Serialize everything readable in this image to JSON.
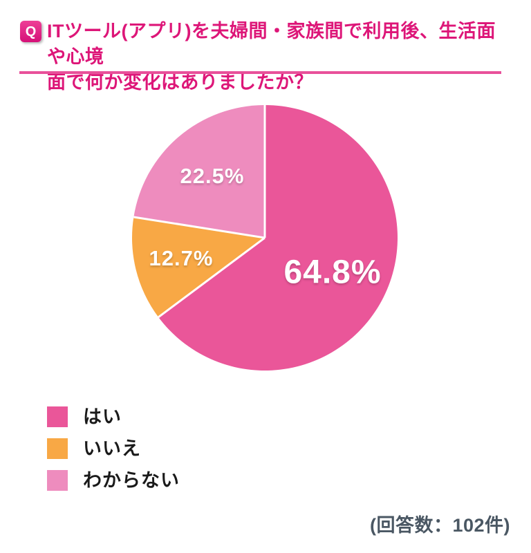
{
  "question": {
    "badge": "Q",
    "title_line1": "ITツール(アプリ)を夫婦間・家族間で利用後、生活面や心境",
    "title_line2": "面で何か変化はありましたか？"
  },
  "chart_data": {
    "type": "pie",
    "title": "ITツール(アプリ)を夫婦間・家族間で利用後、生活面や心境面で何か変化はありましたか？",
    "categories": [
      "はい",
      "いいえ",
      "わからない"
    ],
    "values": [
      64.8,
      12.7,
      22.5
    ],
    "value_labels": [
      "64.8%",
      "12.7%",
      "22.5%"
    ],
    "colors": [
      "#ea5699",
      "#f8a845",
      "#ee8cbe"
    ],
    "start_angle_deg": 0,
    "direction": "clockwise",
    "separator_color": "#ffffff",
    "legend_position": "bottom-left"
  },
  "footer": {
    "response_count": "(回答数：102件)"
  },
  "theme": {
    "title_pink": "#dd1678",
    "underline_pink": "#e8519a",
    "footer_text_color": "#4a5763",
    "background": "#ffffff"
  }
}
